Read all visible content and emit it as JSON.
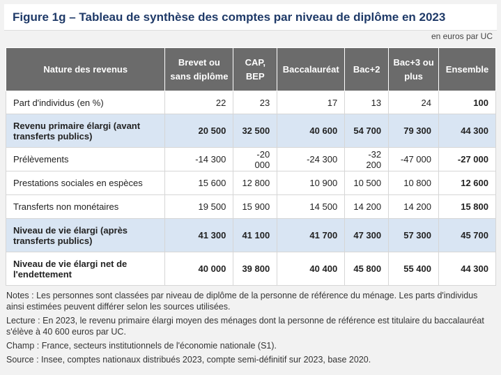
{
  "title": "Figure 1g – Tableau de synthèse des comptes par niveau de diplôme en 2023",
  "unit": "en euros par UC",
  "table": {
    "headers": [
      "Nature des revenus",
      "Brevet ou sans diplôme",
      "CAP, BEP",
      "Baccalauréat",
      "Bac+2",
      "Bac+3 ou plus",
      "Ensemble"
    ],
    "rows": [
      {
        "label": "Part d'individus (en %)",
        "values": [
          "22",
          "23",
          "17",
          "13",
          "24",
          "100"
        ]
      },
      {
        "label": "Revenu primaire élargi (avant transferts publics)",
        "values": [
          "20 500",
          "32 500",
          "40 600",
          "54 700",
          "79 300",
          "44 300"
        ]
      },
      {
        "label": "Prélèvements",
        "values": [
          "-14 300",
          "-20 000",
          "-24 300",
          "-32 200",
          "-47 000",
          "-27 000"
        ]
      },
      {
        "label": "Prestations sociales en espèces",
        "values": [
          "15 600",
          "12 800",
          "10 900",
          "10 500",
          "10 800",
          "12 600"
        ]
      },
      {
        "label": "Transferts non monétaires",
        "values": [
          "19 500",
          "15 900",
          "14 500",
          "14 200",
          "14 200",
          "15 800"
        ]
      },
      {
        "label": "Niveau de vie élargi (après transferts publics)",
        "values": [
          "41 300",
          "41 100",
          "41 700",
          "47 300",
          "57 300",
          "45 700"
        ]
      },
      {
        "label": "Niveau de vie élargi net de l'endettement",
        "values": [
          "40 000",
          "39 800",
          "40 400",
          "45 800",
          "55 400",
          "44 300"
        ]
      }
    ]
  },
  "notes": [
    "Notes : Les personnes sont classées par niveau de diplôme de la personne de référence du ménage. Les parts d'individus ainsi estimées peuvent différer selon les sources utilisées.",
    "Lecture : En 2023, le revenu primaire élargi moyen des ménages dont la personne de référence est titulaire du baccalauréat s'élève à 40 600 euros par UC.",
    "Champ : France, secteurs institutionnels de l'économie nationale (S1).",
    "Source : Insee, comptes nationaux distribués 2023, compte semi-définitif sur 2023, base 2020."
  ]
}
